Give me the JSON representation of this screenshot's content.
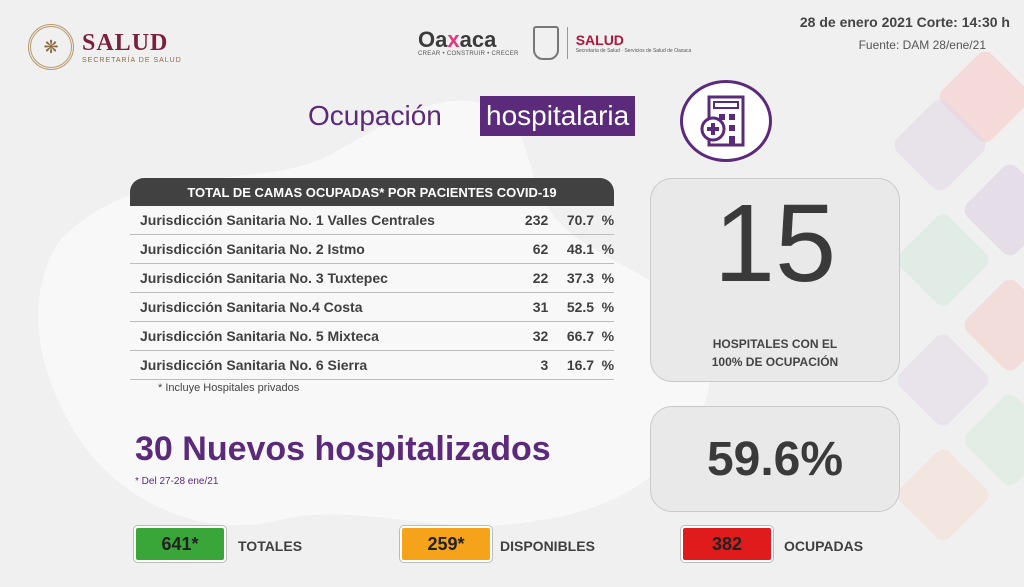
{
  "header": {
    "salud_logo": {
      "word": "SALUD",
      "subtitle": "SECRETARÍA DE SALUD"
    },
    "oaxaca_logo": {
      "word_a": "Oa",
      "word_x": "x",
      "word_b": "aca",
      "tagline": "CREAR • CONSTRUIR • CRECER"
    },
    "salud_oax": {
      "word": "SALUD",
      "subtitle": "Secretaría de Salud · Servicios de Salud de Oaxaca"
    },
    "date_line": "28 de enero 2021 Corte: 14:30 h",
    "source_line": "Fuente: DAM 28/ene/21"
  },
  "title": {
    "part1": "Ocupación",
    "part2": "hospitalaria"
  },
  "table": {
    "header": "TOTAL DE CAMAS OCUPADAS* POR PACIENTES COVID-19",
    "rows": [
      {
        "name": "Jurisdicción Sanitaria No. 1 Valles Centrales",
        "count": "232",
        "percent": "70.7",
        "symbol": "%"
      },
      {
        "name": "Jurisdicción Sanitaria No. 2 Istmo",
        "count": "62",
        "percent": "48.1",
        "symbol": "%"
      },
      {
        "name": "Jurisdicción Sanitaria No. 3 Tuxtepec",
        "count": "22",
        "percent": "37.3",
        "symbol": "%"
      },
      {
        "name": "Jurisdicción Sanitaria No.4 Costa",
        "count": "31",
        "percent": "52.5",
        "symbol": "%"
      },
      {
        "name": "Jurisdicción Sanitaria No. 5 Mixteca",
        "count": "32",
        "percent": "66.7",
        "symbol": "%"
      },
      {
        "name": "Jurisdicción Sanitaria No. 6 Sierra",
        "count": "3",
        "percent": "16.7",
        "symbol": "%"
      }
    ],
    "footnote": "* Incluye Hospitales privados"
  },
  "hospitals_card": {
    "value": "15",
    "label_line1": "HOSPITALES CON EL",
    "label_line2": "100% DE OCUPACIÓN"
  },
  "occupancy_card": {
    "value": "59.6%"
  },
  "nuevos": {
    "text": "30 Nuevos hospitalizados",
    "note": "* Del 27-28 ene/21"
  },
  "totals": [
    {
      "value": "641*",
      "label": "TOTALES",
      "color": "#3aa63a"
    },
    {
      "value": "259*",
      "label": "DISPONIBLES",
      "color": "#f5a31a"
    },
    {
      "value": "382",
      "label": "OCUPADAS",
      "color": "#e01b1b"
    }
  ],
  "colors": {
    "accent": "#5b2a7a",
    "table_header": "#414141"
  },
  "icons": [
    "government-seal-icon",
    "oaxaca-shield-icon",
    "hospital-icon"
  ]
}
